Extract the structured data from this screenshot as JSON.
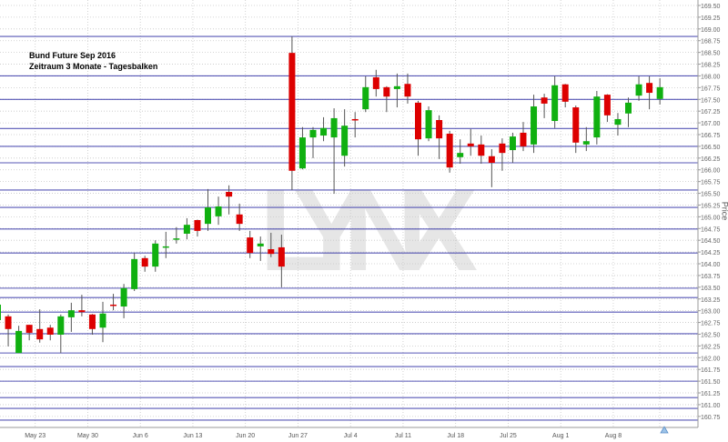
{
  "chart_data": {
    "type": "candlestick",
    "title": "Bund Future Sep 2016",
    "subtitle": "Zeitraum 3 Monate - Tagesbalken",
    "ylabel": "Price",
    "xlabel": "",
    "watermark": "LYNX",
    "ylim": [
      160.5,
      169.6
    ],
    "y_ticks": [
      "169.50",
      "169.25",
      "169.00",
      "168.75",
      "168.50",
      "168.25",
      "168.00",
      "167.75",
      "167.50",
      "167.25",
      "167.00",
      "166.75",
      "166.50",
      "166.25",
      "166.00",
      "165.75",
      "165.50",
      "165.25",
      "165.00",
      "164.75",
      "164.50",
      "164.25",
      "164.00",
      "163.75",
      "163.50",
      "163.25",
      "163.00",
      "162.75",
      "162.50",
      "162.25",
      "162.00",
      "161.75",
      "161.50",
      "161.25",
      "161.00",
      "160.75"
    ],
    "x_ticks": [
      {
        "label": "May 23",
        "index": 4
      },
      {
        "label": "May 30",
        "index": 9
      },
      {
        "label": "Jun 6",
        "index": 14
      },
      {
        "label": "Jun 13",
        "index": 19
      },
      {
        "label": "Jun 20",
        "index": 24
      },
      {
        "label": "Jun 27",
        "index": 29
      },
      {
        "label": "Jul 4",
        "index": 34
      },
      {
        "label": "Jul 11",
        "index": 39
      },
      {
        "label": "Jul 18",
        "index": 44
      },
      {
        "label": "Jul 25",
        "index": 49
      },
      {
        "label": "Aug 1",
        "index": 54
      },
      {
        "label": "Aug 8",
        "index": 59
      }
    ],
    "horizontal_levels": [
      168.84,
      168.0,
      167.5,
      166.88,
      166.5,
      166.15,
      165.57,
      165.2,
      164.74,
      164.23,
      163.48,
      163.28,
      162.97,
      162.51,
      162.1,
      161.81,
      161.5,
      161.15,
      160.92,
      160.67
    ],
    "grid": true,
    "colors": {
      "up": "#10b010",
      "down": "#dd0000",
      "level": "#3a3aaa",
      "grid": "#c8c8c8",
      "watermark": "#e6e6e6"
    },
    "candles": [
      [
        162.8,
        163.23,
        162.72,
        163.13
      ],
      [
        162.88,
        162.92,
        162.24,
        162.61
      ],
      [
        162.1,
        162.68,
        162.1,
        162.57
      ],
      [
        162.7,
        162.7,
        162.37,
        162.53
      ],
      [
        162.61,
        163.03,
        162.32,
        162.39
      ],
      [
        162.64,
        162.7,
        162.37,
        162.49
      ],
      [
        162.49,
        162.92,
        162.1,
        162.88
      ],
      [
        162.86,
        163.17,
        162.55,
        163.01
      ],
      [
        163.01,
        163.34,
        162.88,
        162.97
      ],
      [
        162.92,
        162.93,
        162.49,
        162.61
      ],
      [
        162.64,
        163.19,
        162.33,
        162.94
      ],
      [
        163.13,
        163.36,
        163.01,
        163.11
      ],
      [
        163.09,
        163.57,
        162.84,
        163.48
      ],
      [
        163.46,
        164.23,
        163.42,
        164.1
      ],
      [
        164.12,
        164.17,
        163.83,
        163.94
      ],
      [
        163.94,
        164.5,
        163.83,
        164.43
      ],
      [
        164.35,
        164.68,
        164.12,
        164.37
      ],
      [
        164.52,
        164.78,
        164.43,
        164.54
      ],
      [
        164.64,
        164.97,
        164.52,
        164.83
      ],
      [
        164.93,
        164.94,
        164.58,
        164.7
      ],
      [
        164.85,
        165.59,
        164.7,
        165.2
      ],
      [
        165.01,
        165.43,
        164.83,
        165.22
      ],
      [
        165.53,
        165.67,
        165.05,
        165.43
      ],
      [
        165.05,
        165.28,
        164.7,
        164.85
      ],
      [
        164.56,
        164.7,
        164.12,
        164.23
      ],
      [
        164.37,
        164.58,
        164.06,
        164.43
      ],
      [
        164.31,
        164.66,
        164.14,
        164.21
      ],
      [
        164.35,
        164.62,
        163.5,
        163.94
      ],
      [
        168.49,
        168.84,
        165.57,
        165.98
      ],
      [
        166.03,
        166.91,
        166.01,
        166.69
      ],
      [
        166.69,
        166.91,
        166.25,
        166.85
      ],
      [
        166.73,
        167.12,
        166.61,
        166.89
      ],
      [
        166.69,
        167.31,
        165.49,
        167.1
      ],
      [
        166.3,
        167.29,
        166.07,
        166.94
      ],
      [
        167.08,
        167.23,
        166.69,
        167.06
      ],
      [
        167.29,
        167.99,
        167.23,
        167.76
      ],
      [
        167.97,
        168.13,
        167.56,
        167.72
      ],
      [
        167.76,
        167.78,
        167.23,
        167.56
      ],
      [
        167.72,
        168.05,
        167.33,
        167.78
      ],
      [
        167.83,
        168.05,
        167.41,
        167.56
      ],
      [
        167.43,
        167.47,
        166.3,
        166.65
      ],
      [
        166.67,
        167.35,
        166.61,
        167.27
      ],
      [
        167.06,
        167.16,
        166.23,
        166.67
      ],
      [
        166.77,
        166.83,
        165.94,
        166.05
      ],
      [
        166.27,
        166.65,
        166.13,
        166.36
      ],
      [
        166.56,
        166.87,
        166.3,
        166.5
      ],
      [
        166.54,
        166.73,
        166.13,
        166.3
      ],
      [
        166.29,
        166.44,
        165.63,
        166.15
      ],
      [
        166.56,
        166.67,
        165.98,
        166.36
      ],
      [
        166.42,
        166.79,
        166.15,
        166.71
      ],
      [
        166.79,
        167.02,
        166.4,
        166.5
      ],
      [
        166.54,
        167.6,
        166.36,
        167.35
      ],
      [
        167.54,
        167.62,
        167.1,
        167.41
      ],
      [
        167.04,
        167.99,
        166.89,
        167.8
      ],
      [
        167.82,
        167.83,
        167.33,
        167.45
      ],
      [
        167.33,
        167.37,
        166.36,
        166.58
      ],
      [
        166.54,
        166.91,
        166.4,
        166.61
      ],
      [
        166.69,
        167.68,
        166.54,
        167.56
      ],
      [
        167.6,
        167.61,
        167.02,
        167.16
      ],
      [
        166.96,
        167.21,
        166.73,
        167.08
      ],
      [
        167.2,
        167.54,
        166.91,
        167.43
      ],
      [
        167.58,
        167.99,
        167.47,
        167.82
      ],
      [
        167.85,
        167.99,
        167.29,
        167.64
      ],
      [
        167.51,
        167.95,
        167.39,
        167.76
      ]
    ],
    "candle_format": [
      "open",
      "high",
      "low",
      "close"
    ]
  }
}
